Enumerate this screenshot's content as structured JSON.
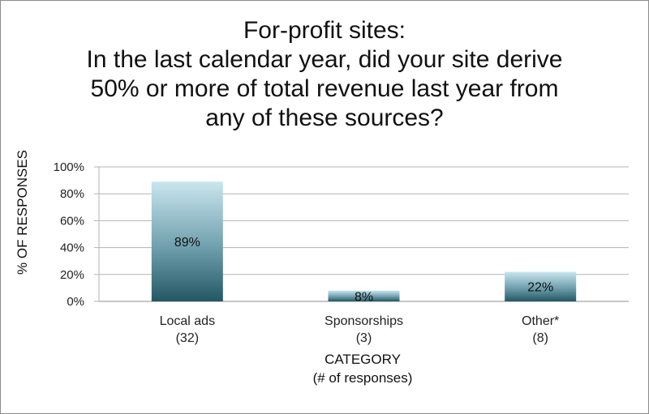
{
  "chart_data": {
    "type": "bar",
    "title_lines": [
      "For-profit sites:",
      "In the last calendar year, did your site derive",
      "50% or more of total revenue last year from",
      "any of these sources?"
    ],
    "categories": [
      "Local ads",
      "Sponsorships",
      "Other*"
    ],
    "category_counts": [
      "(32)",
      "(3)",
      "(8)"
    ],
    "values": [
      89,
      8,
      22
    ],
    "value_labels": [
      "89%",
      "8%",
      "22%"
    ],
    "ylabel": "% OF RESPONSES",
    "xlabel_lines": [
      "CATEGORY",
      "(# of responses)"
    ],
    "yticks": [
      0,
      20,
      40,
      60,
      80,
      100
    ],
    "ytick_labels": [
      "0%",
      "20%",
      "40%",
      "60%",
      "80%",
      "100%"
    ],
    "ylim": [
      0,
      100
    ],
    "grid": true,
    "legend": "none",
    "colors": {
      "bar_top": "#c9e6ee",
      "bar_mid": "#6f9fad",
      "bar_bottom": "#245764",
      "grid": "#b3b3b3"
    }
  }
}
